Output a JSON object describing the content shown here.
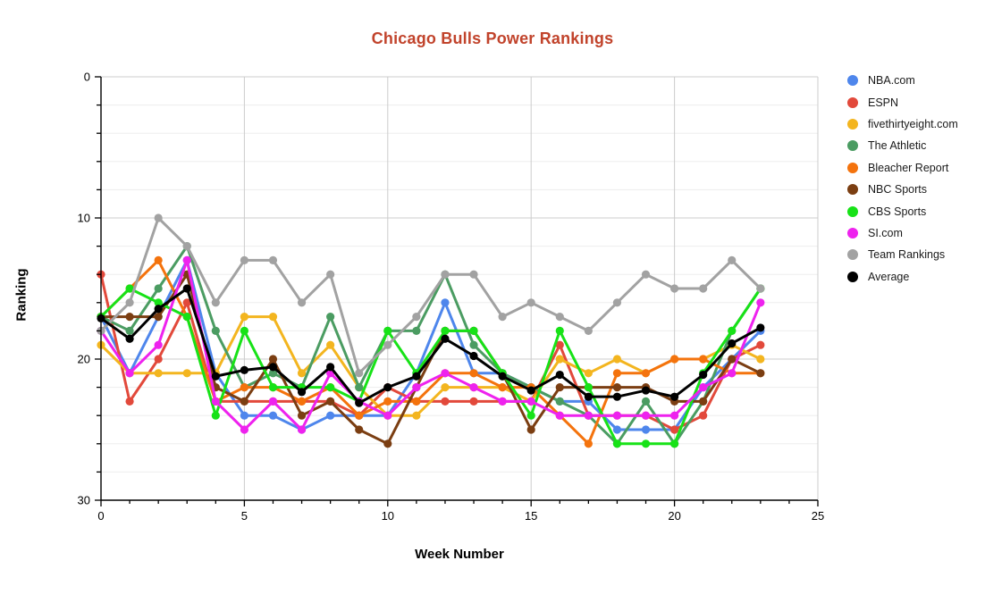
{
  "title": "Chicago Bulls Power Rankings",
  "colors": {
    "title_text": "#c1432b",
    "axis": "#000000",
    "major_grid": "#cccccc",
    "minor_grid": "#ededed",
    "background": "#ffffff",
    "legend_text": "#1a1a1a"
  },
  "chart_data": {
    "type": "line",
    "title": "Chicago Bulls Power Rankings",
    "xlabel": "Week Number",
    "ylabel": "Ranking",
    "xlim": [
      0,
      25
    ],
    "ylim": [
      0,
      30
    ],
    "y_inverted_note": "ranking axis runs 0 at top to 30 at bottom",
    "x_ticks": [
      0,
      5,
      10,
      15,
      20,
      25
    ],
    "y_ticks": [
      0,
      10,
      20,
      30
    ],
    "minor_y_grid_step": 2,
    "minor_x_tick_step": 1,
    "grid": "on",
    "legend_position": "right",
    "marker": "circle",
    "x": [
      0,
      1,
      2,
      3,
      4,
      5,
      6,
      7,
      8,
      9,
      10,
      11,
      12,
      13,
      14,
      15,
      16,
      17,
      18,
      19,
      20,
      21,
      22,
      23
    ],
    "series": [
      {
        "name": "NBA.com",
        "color": "#4e86ec",
        "values": [
          17,
          21,
          17,
          13,
          21,
          24,
          24,
          25,
          24,
          24,
          24,
          21,
          16,
          21,
          21,
          22,
          23,
          23,
          25,
          25,
          25,
          22,
          20,
          18
        ]
      },
      {
        "name": "ESPN",
        "color": "#e2493b",
        "values": [
          14,
          23,
          20,
          16,
          23,
          23,
          23,
          23,
          23,
          24,
          22,
          23,
          23,
          23,
          23,
          23,
          19,
          24,
          24,
          24,
          25,
          24,
          20,
          19
        ]
      },
      {
        "name": "fivethirtyeight.com",
        "color": "#f3b51f",
        "values": [
          19,
          21,
          21,
          21,
          21,
          17,
          17,
          21,
          19,
          22,
          24,
          24,
          22,
          22,
          22,
          23,
          20,
          21,
          20,
          21,
          20,
          20,
          19,
          20
        ]
      },
      {
        "name": "The Athletic",
        "color": "#4b9c62",
        "values": [
          17,
          18,
          15,
          12,
          18,
          22,
          21,
          22,
          17,
          22,
          18,
          18,
          14,
          19,
          21,
          22,
          23,
          24,
          26,
          23,
          26,
          23,
          18,
          15
        ]
      },
      {
        "name": "Bleacher Report",
        "color": "#f4730d",
        "values": [
          17,
          15,
          13,
          17,
          23,
          22,
          22,
          23,
          22,
          24,
          23,
          23,
          21,
          21,
          22,
          22,
          24,
          26,
          21,
          21,
          20,
          20,
          21,
          21
        ]
      },
      {
        "name": "NBC Sports",
        "color": "#7b3e12",
        "values": [
          17,
          17,
          17,
          14,
          22,
          23,
          20,
          24,
          23,
          25,
          26,
          22,
          18,
          18,
          21,
          25,
          22,
          22,
          22,
          22,
          23,
          23,
          20,
          21
        ]
      },
      {
        "name": "CBS Sports",
        "color": "#17e217",
        "values": [
          17,
          15,
          16,
          17,
          24,
          18,
          22,
          22,
          22,
          23,
          18,
          21,
          18,
          18,
          21,
          24,
          18,
          22,
          26,
          26,
          26,
          21,
          18,
          15
        ]
      },
      {
        "name": "SI.com",
        "color": "#ee22ee",
        "values": [
          18,
          21,
          19,
          13,
          23,
          25,
          23,
          25,
          21,
          23,
          24,
          22,
          21,
          22,
          23,
          23,
          24,
          24,
          24,
          24,
          24,
          22,
          21,
          16
        ]
      },
      {
        "name": "Team Rankings",
        "color": "#a2a2a2",
        "values": [
          18,
          16,
          10,
          12,
          16,
          13,
          13,
          16,
          14,
          21,
          19,
          17,
          14,
          14,
          17,
          16,
          17,
          18,
          16,
          14,
          15,
          15,
          13,
          15
        ]
      },
      {
        "name": "Average",
        "color": "#000000",
        "values": [
          17.11,
          18.56,
          16.44,
          15,
          21.22,
          20.78,
          20.56,
          22.33,
          20.56,
          23.11,
          22,
          21.22,
          18.56,
          19.78,
          21.22,
          22.22,
          21.11,
          22.67,
          22.67,
          22.22,
          22.67,
          21.11,
          18.89,
          17.78
        ]
      }
    ]
  }
}
